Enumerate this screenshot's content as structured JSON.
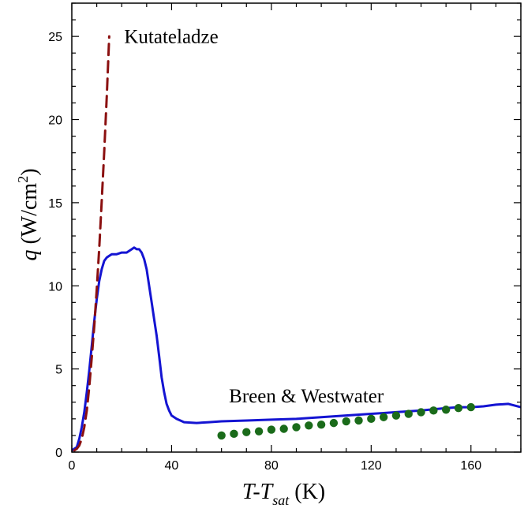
{
  "chart_data": {
    "type": "line",
    "xlabel": {
      "main": "T-T",
      "sub": "sat",
      "unit": " (K)"
    },
    "ylabel": {
      "var": "q",
      "unit": " (W/cm",
      "sup": "2",
      "close": ")"
    },
    "xlim": [
      0,
      180
    ],
    "ylim": [
      0,
      27
    ],
    "xticks": [
      0,
      40,
      80,
      120,
      160
    ],
    "xtick_labels": [
      "0",
      "40",
      "80",
      "120",
      "160"
    ],
    "yticks": [
      0,
      5,
      10,
      15,
      20,
      25
    ],
    "ytick_labels": [
      "0",
      "5",
      "10",
      "15",
      "20",
      "25"
    ],
    "grid": false,
    "annotations": [
      {
        "text": "Kutateladze",
        "x": 21,
        "y": 24.6
      },
      {
        "text": "Breen & Westwater",
        "x": 63,
        "y": 3.0
      }
    ],
    "series": [
      {
        "style": "solid",
        "color": "#1414d2",
        "x": [
          0,
          1,
          2,
          3,
          4,
          5,
          6,
          7,
          8,
          9,
          10,
          11,
          12,
          13,
          14,
          15,
          16,
          18,
          20,
          22,
          24,
          25,
          26,
          27,
          28,
          29,
          30,
          31,
          32,
          33,
          34,
          35,
          36,
          37,
          38,
          39,
          40,
          42,
          45,
          50,
          55,
          60,
          70,
          80,
          90,
          100,
          110,
          120,
          125,
          130,
          140,
          150,
          155,
          160,
          165,
          170,
          175,
          180
        ],
        "y": [
          0.1,
          0.2,
          0.3,
          0.8,
          1.5,
          2.4,
          3.6,
          4.9,
          6.4,
          7.9,
          9.2,
          10.3,
          11.0,
          11.5,
          11.7,
          11.8,
          11.9,
          11.9,
          12.0,
          12.0,
          12.2,
          12.3,
          12.2,
          12.2,
          12.0,
          11.6,
          11.0,
          10.0,
          9.0,
          8.0,
          7.0,
          5.8,
          4.5,
          3.6,
          2.9,
          2.5,
          2.2,
          2.0,
          1.8,
          1.75,
          1.8,
          1.85,
          1.9,
          1.95,
          2.0,
          2.1,
          2.2,
          2.3,
          2.35,
          2.4,
          2.5,
          2.65,
          2.7,
          2.7,
          2.75,
          2.85,
          2.9,
          2.7
        ]
      },
      {
        "style": "dashed",
        "color": "#8b1010",
        "x": [
          1,
          2,
          3,
          4,
          5,
          6,
          7,
          8,
          9,
          10,
          11,
          12,
          13,
          14,
          15
        ],
        "y": [
          0.1,
          0.2,
          0.4,
          0.8,
          1.5,
          2.5,
          3.9,
          5.7,
          7.6,
          9.8,
          12.3,
          15.1,
          18.1,
          21.4,
          25.0
        ]
      },
      {
        "style": "dots",
        "color": "#1a6b1a",
        "x": [
          60,
          65,
          70,
          75,
          80,
          85,
          90,
          95,
          100,
          105,
          110,
          115,
          120,
          125,
          130,
          135,
          140,
          145,
          150,
          155,
          160
        ],
        "y": [
          1.0,
          1.1,
          1.2,
          1.25,
          1.35,
          1.4,
          1.5,
          1.6,
          1.65,
          1.75,
          1.85,
          1.9,
          2.0,
          2.1,
          2.2,
          2.3,
          2.4,
          2.5,
          2.55,
          2.65,
          2.7
        ]
      }
    ]
  }
}
